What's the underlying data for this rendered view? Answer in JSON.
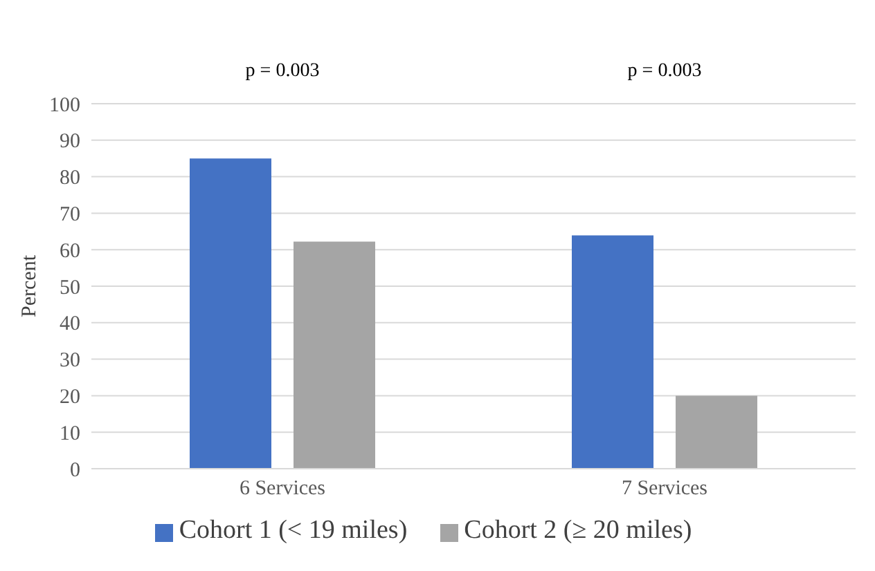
{
  "chart_data": {
    "type": "bar",
    "ylabel": "Percent",
    "categories": [
      "6 Services",
      "7 Services"
    ],
    "series": [
      {
        "name": "Cohort 1 (< 19 miles)",
        "color": "#4472c4",
        "values": [
          85,
          63.9
        ]
      },
      {
        "name": "Cohort 2 (≥ 20 miles)",
        "color": "#a5a5a5",
        "values": [
          62.2,
          20
        ]
      }
    ],
    "ylim": [
      0,
      100
    ],
    "yticks": [
      0,
      10,
      20,
      30,
      40,
      50,
      60,
      70,
      80,
      90,
      100
    ],
    "grid": "y",
    "legend": "bottom",
    "annotations": [
      "p = 0.003",
      "p = 0.003"
    ]
  }
}
